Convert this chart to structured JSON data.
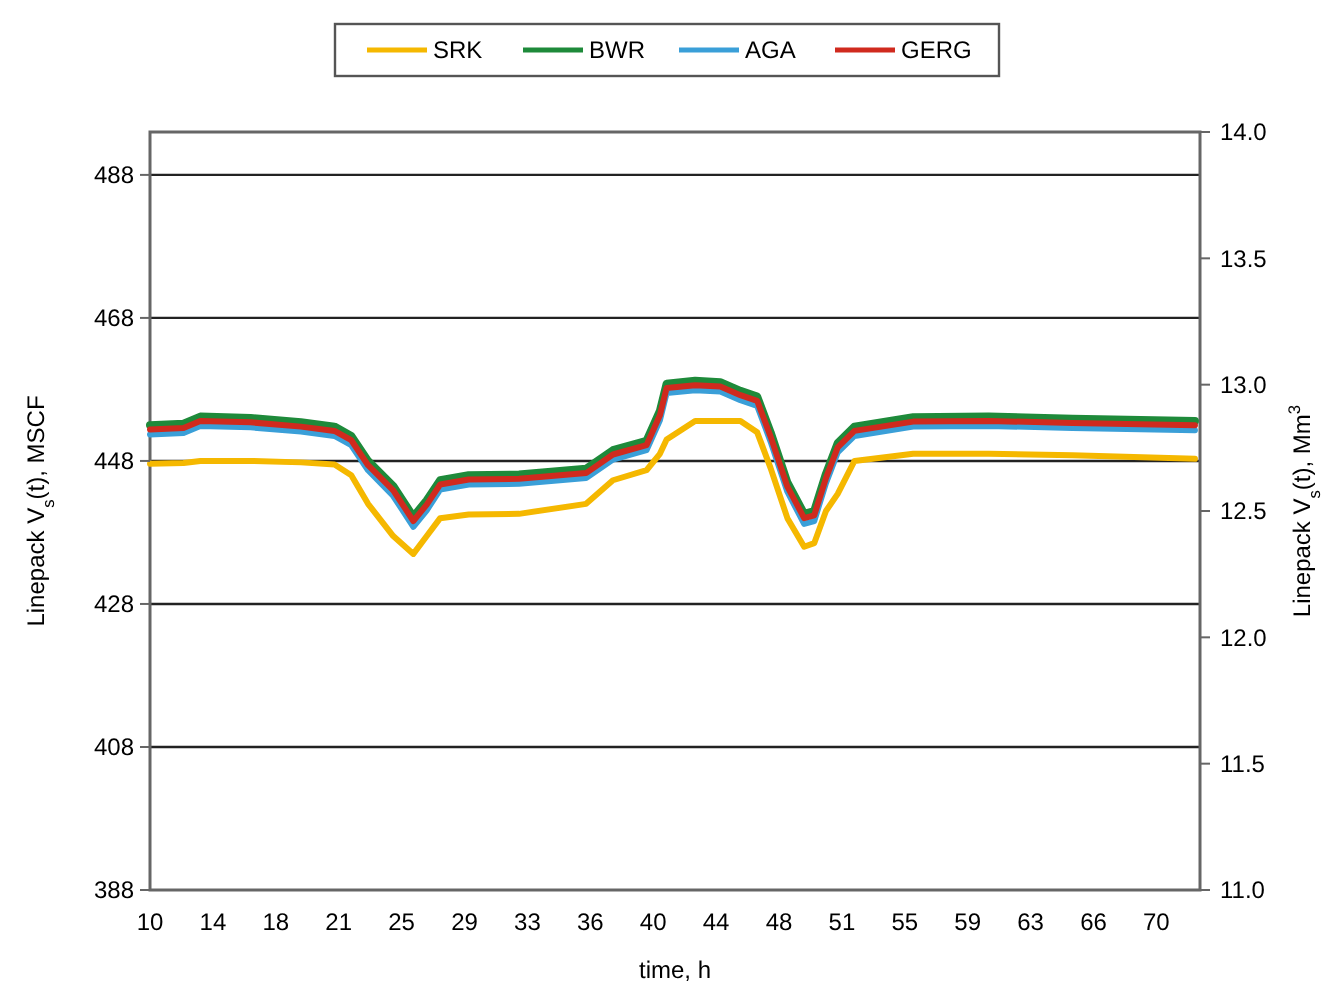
{
  "chart_data": {
    "type": "line",
    "xlabel": "time, h",
    "ylabel": "Linepack V$_{s}$(t), MSCF",
    "y2label": "Linepack V$_{s}$(t), Mm$^{3}$",
    "xlim": [
      10,
      72.6
    ],
    "xticks": [
      10,
      {
        "value": 13.75,
        "label": "14"
      },
      {
        "value": 17.5,
        "label": "18"
      },
      {
        "value": 21.25,
        "label": "21"
      },
      25,
      {
        "value": 28.75,
        "label": "29"
      },
      {
        "value": 32.5,
        "label": "33"
      },
      {
        "value": 36.25,
        "label": "36"
      },
      40,
      {
        "value": 43.75,
        "label": "44"
      },
      {
        "value": 47.5,
        "label": "48"
      },
      {
        "value": 51.25,
        "label": "51"
      },
      55,
      {
        "value": 58.75,
        "label": "59"
      },
      {
        "value": 62.5,
        "label": "63"
      },
      {
        "value": 66.25,
        "label": "66"
      },
      70
    ],
    "ylim": [
      388,
      494
    ],
    "yticks": [
      388,
      408,
      428,
      448,
      468,
      488
    ],
    "y2lim": [
      11,
      14
    ],
    "y2ticks": [
      {
        "value": 11,
        "label": "11.0"
      },
      11.5,
      {
        "value": 12,
        "label": "12.0"
      },
      12.5,
      {
        "value": 13,
        "label": "13.0"
      },
      13.5,
      {
        "value": 14,
        "label": "14.0"
      }
    ],
    "grid": "y",
    "legend": "top",
    "marker": "none",
    "line_style": "solid",
    "x": [
      10,
      12,
      13,
      16,
      19,
      21,
      22,
      23,
      24.5,
      25.7,
      26.5,
      27.3,
      29,
      32,
      36,
      37.6,
      39.6,
      40.4,
      40.8,
      42.5,
      44,
      45.2,
      46.2,
      47,
      48,
      49,
      49.6,
      50.3,
      51,
      52,
      55.5,
      60,
      65,
      72.3
    ],
    "series": [
      {
        "name": "SRK",
        "color": "#f5b800",
        "values": [
          447.6,
          447.7,
          448,
          448,
          447.8,
          447.5,
          446,
          442,
          437.5,
          435,
          437.5,
          440,
          440.5,
          440.6,
          442,
          445.3,
          446.7,
          449,
          451,
          453.6,
          453.6,
          453.6,
          452,
          447,
          440,
          436,
          436.5,
          441,
          443.4,
          448,
          449,
          449,
          448.8,
          448.3
        ]
      },
      {
        "name": "BWR",
        "color": "#1e8a3a",
        "values": [
          453,
          453.2,
          454.2,
          454,
          453.4,
          452.8,
          451.5,
          448,
          444.5,
          440.2,
          442.5,
          445.3,
          446,
          446.1,
          446.9,
          449.5,
          450.8,
          455,
          458.8,
          459.2,
          459,
          457.8,
          457,
          452,
          445,
          440.6,
          441,
          446.2,
          450.5,
          452.8,
          454.1,
          454.2,
          453.9,
          453.6
        ]
      },
      {
        "name": "AGA",
        "color": "#3a9fd8",
        "values": [
          451.7,
          451.9,
          452.9,
          452.7,
          452.1,
          451.5,
          450.2,
          446.7,
          443.1,
          438.8,
          441.1,
          444,
          444.7,
          444.8,
          445.6,
          448.2,
          449.5,
          453.7,
          457.5,
          457.9,
          457.7,
          456.5,
          455.7,
          450.7,
          443.7,
          439.2,
          439.6,
          444.9,
          449.2,
          451.5,
          452.8,
          452.9,
          452.6,
          452.3
        ]
      },
      {
        "name": "GERG",
        "color": "#d02a1e",
        "values": [
          452.4,
          452.6,
          453.6,
          453.4,
          452.8,
          452.2,
          450.9,
          447.4,
          443.9,
          439.6,
          441.9,
          444.7,
          445.4,
          445.5,
          446.3,
          448.9,
          450.2,
          454.4,
          458.2,
          458.6,
          458.4,
          457.2,
          456.4,
          451.4,
          444.4,
          440,
          440.4,
          445.6,
          449.9,
          452.2,
          453.5,
          453.6,
          453.3,
          453
        ]
      }
    ]
  }
}
